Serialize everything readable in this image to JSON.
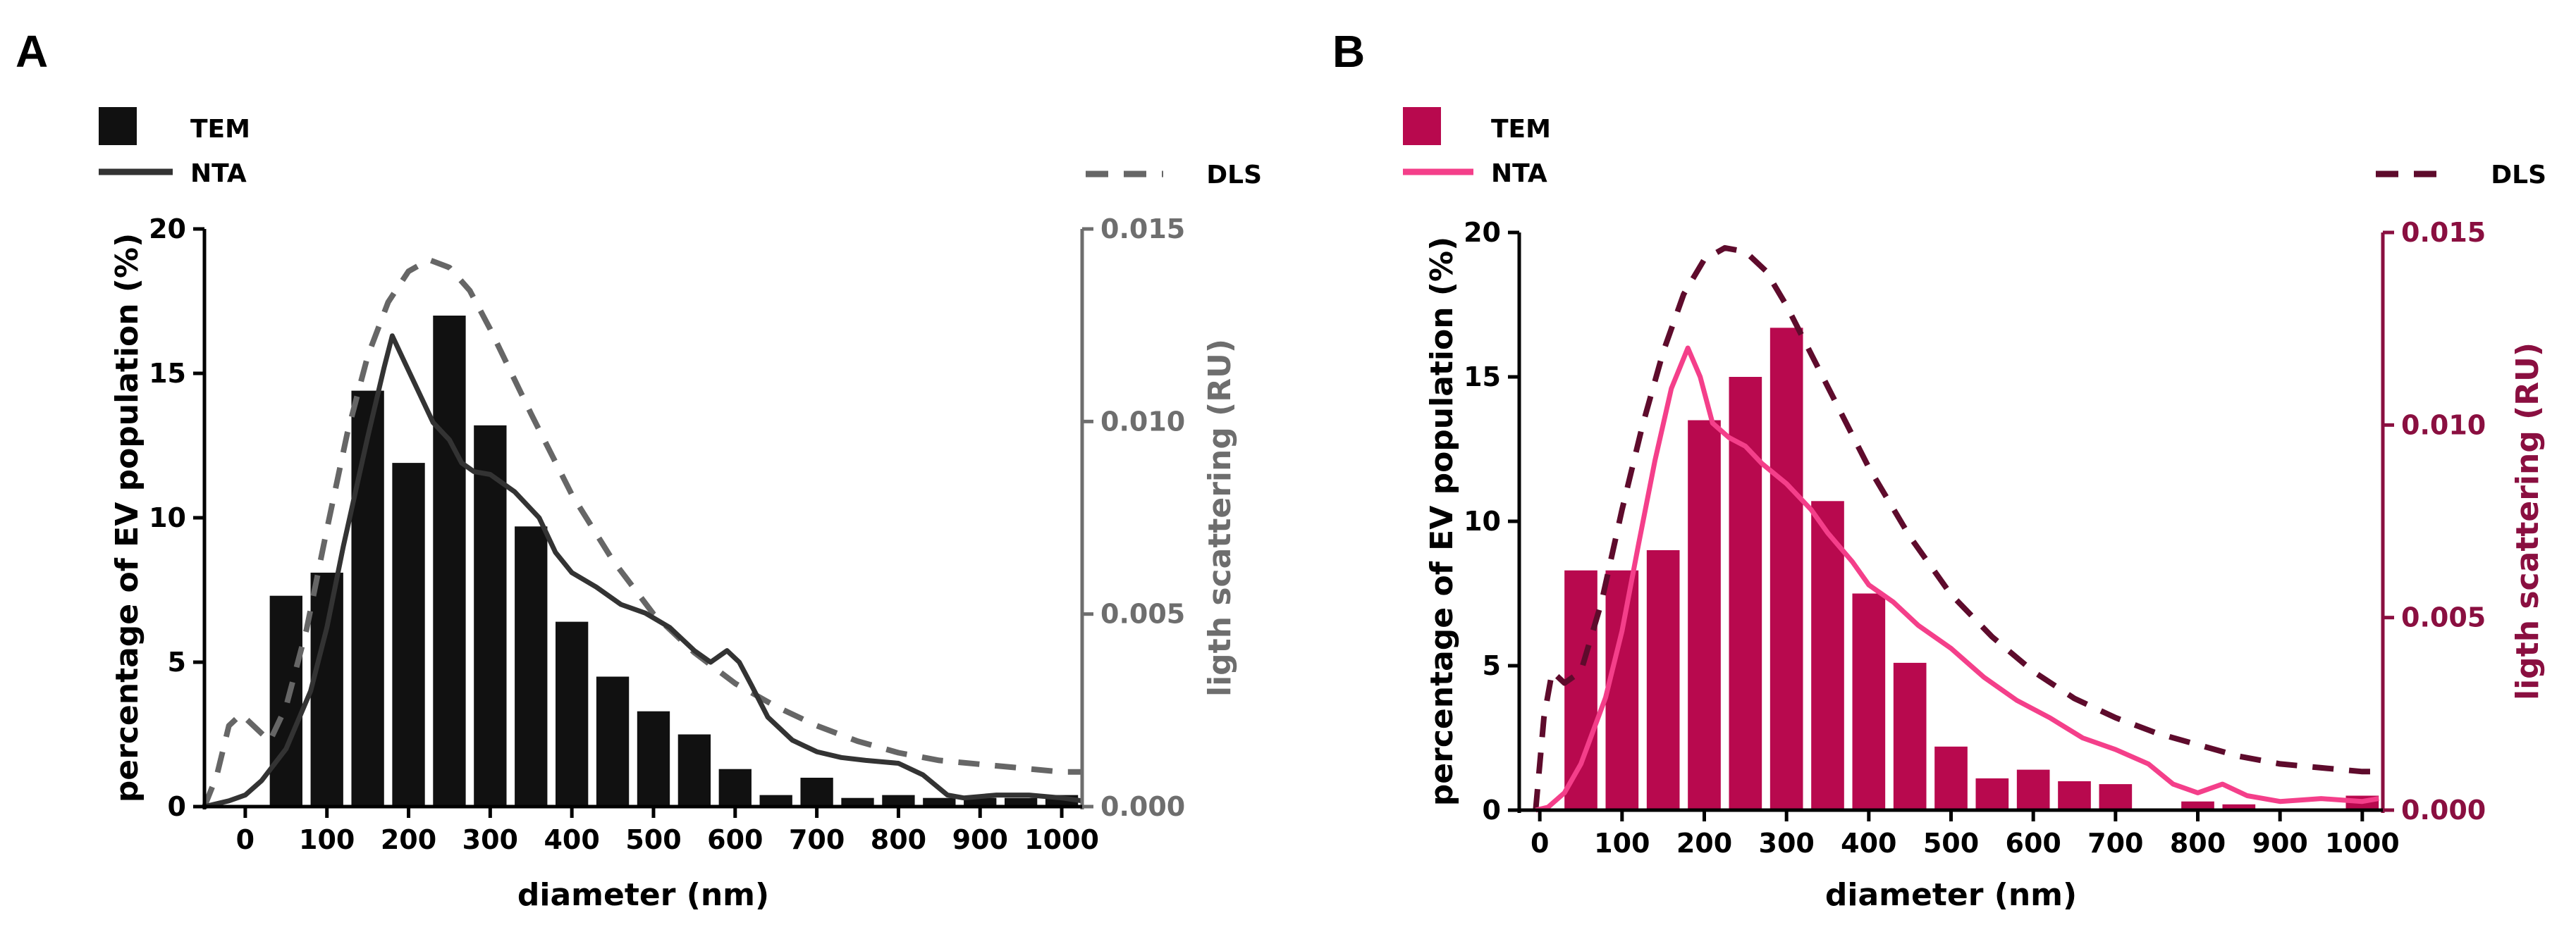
{
  "figure": {
    "panels": [
      {
        "letter": "A",
        "accent": "#111111",
        "nta_color": "#333333",
        "dls_color": "#666666",
        "right_axis_color": "#6e6e6e"
      },
      {
        "letter": "B",
        "accent": "#b8094e",
        "nta_color": "#f43f8a",
        "dls_color": "#5e0b2c",
        "right_axis_color": "#8a0f40"
      }
    ]
  },
  "chart_data": [
    {
      "type": "bar",
      "panel": "A",
      "legend": {
        "tem": "TEM",
        "nta": "NTA",
        "dls": "DLS"
      },
      "xlabel": "diameter (nm)",
      "ylabel": "percentage of EV population (%)",
      "y2label": "ligth scattering (RU)",
      "xlim": [
        -50,
        1025
      ],
      "ylim": [
        0,
        20
      ],
      "y2lim": [
        0,
        0.015
      ],
      "x_ticks": [
        "0",
        "100",
        "200",
        "300",
        "400",
        "500",
        "600",
        "700",
        "800",
        "900",
        "1000"
      ],
      "x_tick_values": [
        0,
        100,
        200,
        300,
        400,
        500,
        600,
        700,
        800,
        900,
        1000
      ],
      "y_ticks": [
        "0",
        "5",
        "10",
        "15",
        "20"
      ],
      "y_tick_values": [
        0,
        5,
        10,
        15,
        20
      ],
      "y2_ticks": [
        "0.000",
        "0.005",
        "0.010",
        "0.015"
      ],
      "y2_tick_values": [
        0,
        0.005,
        0.01,
        0.015
      ],
      "bin_width": 50,
      "tem_bins": [
        {
          "x": 50,
          "y": 7.3
        },
        {
          "x": 100,
          "y": 8.1
        },
        {
          "x": 150,
          "y": 14.4
        },
        {
          "x": 200,
          "y": 11.9
        },
        {
          "x": 250,
          "y": 17.0
        },
        {
          "x": 300,
          "y": 13.2
        },
        {
          "x": 350,
          "y": 9.7
        },
        {
          "x": 400,
          "y": 6.4
        },
        {
          "x": 450,
          "y": 4.5
        },
        {
          "x": 500,
          "y": 3.3
        },
        {
          "x": 550,
          "y": 2.5
        },
        {
          "x": 600,
          "y": 1.3
        },
        {
          "x": 650,
          "y": 0.4
        },
        {
          "x": 700,
          "y": 1.0
        },
        {
          "x": 750,
          "y": 0.3
        },
        {
          "x": 800,
          "y": 0.4
        },
        {
          "x": 850,
          "y": 0.3
        },
        {
          "x": 900,
          "y": 0.3
        },
        {
          "x": 950,
          "y": 0.3
        },
        {
          "x": 1000,
          "y": 0.4
        }
      ],
      "nta_curve": [
        {
          "x": -50,
          "y": 0.0
        },
        {
          "x": -20,
          "y": 0.2
        },
        {
          "x": 0,
          "y": 0.4
        },
        {
          "x": 20,
          "y": 0.9
        },
        {
          "x": 50,
          "y": 2.0
        },
        {
          "x": 80,
          "y": 4.0
        },
        {
          "x": 100,
          "y": 6.2
        },
        {
          "x": 120,
          "y": 9.0
        },
        {
          "x": 150,
          "y": 12.8
        },
        {
          "x": 170,
          "y": 15.2
        },
        {
          "x": 180,
          "y": 16.3
        },
        {
          "x": 195,
          "y": 15.4
        },
        {
          "x": 210,
          "y": 14.5
        },
        {
          "x": 230,
          "y": 13.3
        },
        {
          "x": 250,
          "y": 12.7
        },
        {
          "x": 265,
          "y": 11.9
        },
        {
          "x": 280,
          "y": 11.6
        },
        {
          "x": 300,
          "y": 11.5
        },
        {
          "x": 330,
          "y": 10.9
        },
        {
          "x": 360,
          "y": 10.0
        },
        {
          "x": 380,
          "y": 8.8
        },
        {
          "x": 400,
          "y": 8.1
        },
        {
          "x": 430,
          "y": 7.6
        },
        {
          "x": 460,
          "y": 7.0
        },
        {
          "x": 490,
          "y": 6.7
        },
        {
          "x": 520,
          "y": 6.2
        },
        {
          "x": 550,
          "y": 5.4
        },
        {
          "x": 570,
          "y": 5.0
        },
        {
          "x": 590,
          "y": 5.4
        },
        {
          "x": 605,
          "y": 5.0
        },
        {
          "x": 620,
          "y": 4.2
        },
        {
          "x": 640,
          "y": 3.1
        },
        {
          "x": 670,
          "y": 2.3
        },
        {
          "x": 700,
          "y": 1.9
        },
        {
          "x": 730,
          "y": 1.7
        },
        {
          "x": 760,
          "y": 1.6
        },
        {
          "x": 800,
          "y": 1.5
        },
        {
          "x": 830,
          "y": 1.1
        },
        {
          "x": 860,
          "y": 0.4
        },
        {
          "x": 880,
          "y": 0.3
        },
        {
          "x": 920,
          "y": 0.4
        },
        {
          "x": 960,
          "y": 0.4
        },
        {
          "x": 1000,
          "y": 0.3
        },
        {
          "x": 1025,
          "y": 0.2
        }
      ],
      "dls_curve": [
        {
          "x": -50,
          "y": 0.0
        },
        {
          "x": -35,
          "y": 0.0008
        },
        {
          "x": -20,
          "y": 0.0021
        },
        {
          "x": -5,
          "y": 0.0024
        },
        {
          "x": 10,
          "y": 0.0021
        },
        {
          "x": 30,
          "y": 0.0017
        },
        {
          "x": 50,
          "y": 0.0026
        },
        {
          "x": 75,
          "y": 0.0046
        },
        {
          "x": 100,
          "y": 0.0072
        },
        {
          "x": 125,
          "y": 0.0097
        },
        {
          "x": 150,
          "y": 0.0117
        },
        {
          "x": 175,
          "y": 0.0131
        },
        {
          "x": 200,
          "y": 0.0139
        },
        {
          "x": 225,
          "y": 0.0142
        },
        {
          "x": 250,
          "y": 0.014
        },
        {
          "x": 275,
          "y": 0.0134
        },
        {
          "x": 300,
          "y": 0.0124
        },
        {
          "x": 350,
          "y": 0.0102
        },
        {
          "x": 400,
          "y": 0.0081
        },
        {
          "x": 450,
          "y": 0.0064
        },
        {
          "x": 500,
          "y": 0.005
        },
        {
          "x": 550,
          "y": 0.004
        },
        {
          "x": 600,
          "y": 0.0032
        },
        {
          "x": 650,
          "y": 0.0026
        },
        {
          "x": 700,
          "y": 0.0021
        },
        {
          "x": 750,
          "y": 0.0017
        },
        {
          "x": 800,
          "y": 0.0014
        },
        {
          "x": 850,
          "y": 0.0012
        },
        {
          "x": 900,
          "y": 0.0011
        },
        {
          "x": 950,
          "y": 0.001
        },
        {
          "x": 1000,
          "y": 0.0009
        },
        {
          "x": 1025,
          "y": 0.0009
        }
      ]
    },
    {
      "type": "bar",
      "panel": "B",
      "legend": {
        "tem": "TEM",
        "nta": "NTA",
        "dls": "DLS"
      },
      "xlabel": "diameter (nm)",
      "ylabel": "percentage of EV population (%)",
      "y2label": "ligth scattering (RU)",
      "xlim": [
        -25,
        1025
      ],
      "ylim": [
        0,
        20
      ],
      "y2lim": [
        0,
        0.015
      ],
      "x_ticks": [
        "0",
        "100",
        "200",
        "300",
        "400",
        "500",
        "600",
        "700",
        "800",
        "900",
        "1000"
      ],
      "x_tick_values": [
        0,
        100,
        200,
        300,
        400,
        500,
        600,
        700,
        800,
        900,
        1000
      ],
      "y_ticks": [
        "0",
        "5",
        "10",
        "15",
        "20"
      ],
      "y_tick_values": [
        0,
        5,
        10,
        15,
        20
      ],
      "y2_ticks": [
        "0.000",
        "0.005",
        "0.010",
        "0.015"
      ],
      "y2_tick_values": [
        0,
        0.005,
        0.01,
        0.015
      ],
      "bin_width": 50,
      "tem_bins": [
        {
          "x": 50,
          "y": 8.3
        },
        {
          "x": 100,
          "y": 8.3
        },
        {
          "x": 150,
          "y": 9.0
        },
        {
          "x": 200,
          "y": 13.5
        },
        {
          "x": 250,
          "y": 15.0
        },
        {
          "x": 300,
          "y": 16.7
        },
        {
          "x": 350,
          "y": 10.7
        },
        {
          "x": 400,
          "y": 7.5
        },
        {
          "x": 450,
          "y": 5.1
        },
        {
          "x": 500,
          "y": 2.2
        },
        {
          "x": 550,
          "y": 1.1
        },
        {
          "x": 600,
          "y": 1.4
        },
        {
          "x": 650,
          "y": 1.0
        },
        {
          "x": 700,
          "y": 0.9
        },
        {
          "x": 750,
          "y": 0.0
        },
        {
          "x": 800,
          "y": 0.3
        },
        {
          "x": 850,
          "y": 0.2
        },
        {
          "x": 900,
          "y": 0.0
        },
        {
          "x": 950,
          "y": 0.0
        },
        {
          "x": 1000,
          "y": 0.5
        }
      ],
      "nta_curve": [
        {
          "x": -5,
          "y": 0.0
        },
        {
          "x": 10,
          "y": 0.1
        },
        {
          "x": 30,
          "y": 0.6
        },
        {
          "x": 50,
          "y": 1.6
        },
        {
          "x": 80,
          "y": 3.9
        },
        {
          "x": 100,
          "y": 6.2
        },
        {
          "x": 120,
          "y": 9.2
        },
        {
          "x": 140,
          "y": 12.1
        },
        {
          "x": 160,
          "y": 14.6
        },
        {
          "x": 180,
          "y": 16.0
        },
        {
          "x": 195,
          "y": 15.0
        },
        {
          "x": 210,
          "y": 13.4
        },
        {
          "x": 230,
          "y": 12.9
        },
        {
          "x": 250,
          "y": 12.6
        },
        {
          "x": 270,
          "y": 12.0
        },
        {
          "x": 300,
          "y": 11.3
        },
        {
          "x": 330,
          "y": 10.4
        },
        {
          "x": 350,
          "y": 9.6
        },
        {
          "x": 380,
          "y": 8.6
        },
        {
          "x": 400,
          "y": 7.8
        },
        {
          "x": 430,
          "y": 7.2
        },
        {
          "x": 460,
          "y": 6.4
        },
        {
          "x": 500,
          "y": 5.6
        },
        {
          "x": 540,
          "y": 4.6
        },
        {
          "x": 580,
          "y": 3.8
        },
        {
          "x": 620,
          "y": 3.2
        },
        {
          "x": 660,
          "y": 2.5
        },
        {
          "x": 700,
          "y": 2.1
        },
        {
          "x": 740,
          "y": 1.6
        },
        {
          "x": 770,
          "y": 0.9
        },
        {
          "x": 800,
          "y": 0.6
        },
        {
          "x": 830,
          "y": 0.9
        },
        {
          "x": 860,
          "y": 0.5
        },
        {
          "x": 900,
          "y": 0.3
        },
        {
          "x": 950,
          "y": 0.4
        },
        {
          "x": 1000,
          "y": 0.3
        },
        {
          "x": 1020,
          "y": 0.4
        }
      ],
      "dls_curve": [
        {
          "x": -5,
          "y": 0.0
        },
        {
          "x": 5,
          "y": 0.0024
        },
        {
          "x": 15,
          "y": 0.0036
        },
        {
          "x": 30,
          "y": 0.0033
        },
        {
          "x": 50,
          "y": 0.0036
        },
        {
          "x": 75,
          "y": 0.0054
        },
        {
          "x": 100,
          "y": 0.0078
        },
        {
          "x": 125,
          "y": 0.01
        },
        {
          "x": 150,
          "y": 0.0119
        },
        {
          "x": 175,
          "y": 0.0134
        },
        {
          "x": 200,
          "y": 0.0143
        },
        {
          "x": 225,
          "y": 0.0146
        },
        {
          "x": 250,
          "y": 0.0145
        },
        {
          "x": 275,
          "y": 0.014
        },
        {
          "x": 300,
          "y": 0.0131
        },
        {
          "x": 350,
          "y": 0.011
        },
        {
          "x": 400,
          "y": 0.0089
        },
        {
          "x": 450,
          "y": 0.0071
        },
        {
          "x": 500,
          "y": 0.0056
        },
        {
          "x": 550,
          "y": 0.0045
        },
        {
          "x": 600,
          "y": 0.0036
        },
        {
          "x": 650,
          "y": 0.0029
        },
        {
          "x": 700,
          "y": 0.0024
        },
        {
          "x": 750,
          "y": 0.002
        },
        {
          "x": 800,
          "y": 0.0017
        },
        {
          "x": 850,
          "y": 0.0014
        },
        {
          "x": 900,
          "y": 0.0012
        },
        {
          "x": 950,
          "y": 0.0011
        },
        {
          "x": 1000,
          "y": 0.001
        },
        {
          "x": 1025,
          "y": 0.001
        }
      ]
    }
  ]
}
